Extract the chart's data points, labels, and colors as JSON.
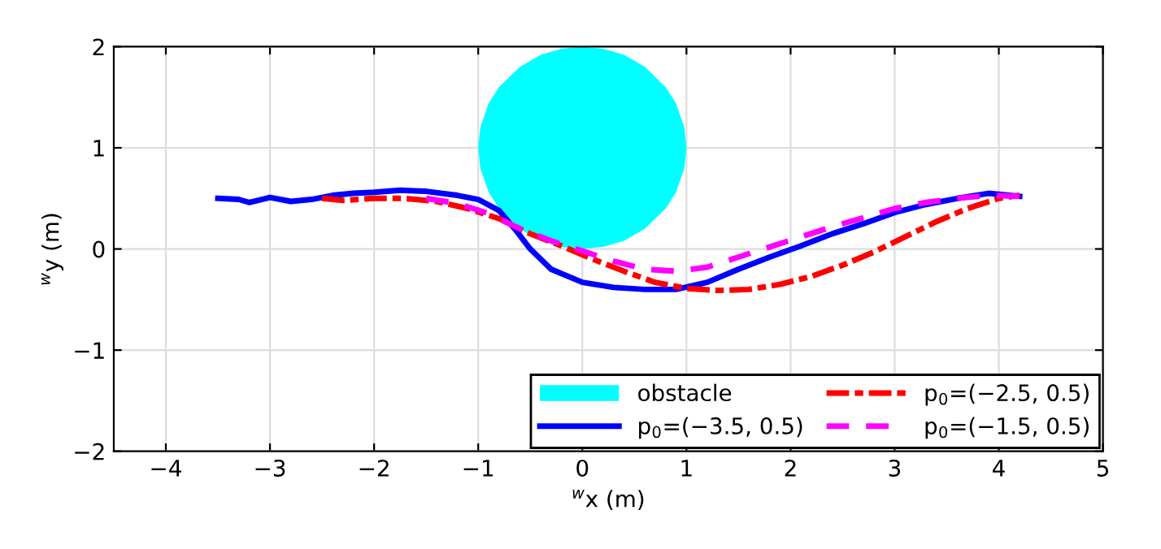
{
  "chart_data": {
    "type": "line",
    "xlabel": "$^{w}$x (m)",
    "ylabel": "$^{w}$y (m)",
    "xlim": [
      -4.5,
      5
    ],
    "ylim": [
      -2,
      2
    ],
    "xticks": [
      -4,
      -3,
      -2,
      -1,
      0,
      1,
      2,
      3,
      4,
      5
    ],
    "yticks": [
      -2,
      -1,
      0,
      1,
      2
    ],
    "grid": true,
    "legend": "bottom right",
    "series": [
      {
        "name": "obstacle",
        "type": "area",
        "color": "#00ffff",
        "x": [
          -1,
          -0.98,
          -0.9,
          -0.8,
          -0.6,
          -0.4,
          -0.2,
          0,
          0.2,
          0.4,
          0.6,
          0.8,
          0.9,
          0.98,
          1,
          0.98,
          0.9,
          0.8,
          0.6,
          0.4,
          0.2,
          0,
          -0.2,
          -0.4,
          -0.6,
          -0.8,
          -0.9,
          -0.98
        ],
        "values": [
          1,
          1.2,
          1.44,
          1.6,
          1.8,
          1.92,
          1.98,
          2,
          1.98,
          1.92,
          1.8,
          1.6,
          1.44,
          1.2,
          1,
          0.8,
          0.56,
          0.4,
          0.2,
          0.08,
          0.02,
          0,
          0.02,
          0.08,
          0.2,
          0.4,
          0.56,
          0.8
        ]
      },
      {
        "name": "p$_{0}$=(−3.5, 0.5)",
        "color": "#0000ff",
        "line_style": "solid",
        "x": [
          -3.5,
          -3.3,
          -3.2,
          -3.0,
          -2.8,
          -2.6,
          -2.4,
          -2.2,
          -2.0,
          -1.75,
          -1.5,
          -1.2,
          -1.0,
          -0.8,
          -0.65,
          -0.5,
          -0.3,
          0,
          0.3,
          0.6,
          0.9,
          1.2,
          1.5,
          1.8,
          2.1,
          2.4,
          2.7,
          3.0,
          3.3,
          3.6,
          3.9,
          4.1,
          4.2
        ],
        "values": [
          0.5,
          0.49,
          0.46,
          0.51,
          0.47,
          0.49,
          0.53,
          0.55,
          0.56,
          0.58,
          0.57,
          0.53,
          0.49,
          0.38,
          0.2,
          0.0,
          -0.2,
          -0.33,
          -0.38,
          -0.4,
          -0.4,
          -0.33,
          -0.2,
          -0.08,
          0.03,
          0.15,
          0.25,
          0.36,
          0.44,
          0.5,
          0.55,
          0.53,
          0.52
        ]
      },
      {
        "name": "p$_{0}$=(−2.5, 0.5)",
        "color": "#ff0000",
        "line_style": "dashdot",
        "x": [
          -2.5,
          -2.3,
          -2.0,
          -1.7,
          -1.4,
          -1.1,
          -0.8,
          -0.5,
          -0.2,
          0.1,
          0.4,
          0.7,
          1.0,
          1.3,
          1.6,
          1.9,
          2.2,
          2.5,
          2.8,
          3.1,
          3.4,
          3.7,
          4.0,
          4.2
        ],
        "values": [
          0.5,
          0.48,
          0.5,
          0.5,
          0.47,
          0.4,
          0.3,
          0.15,
          0.03,
          -0.1,
          -0.22,
          -0.33,
          -0.39,
          -0.41,
          -0.4,
          -0.35,
          -0.27,
          -0.16,
          -0.03,
          0.12,
          0.27,
          0.4,
          0.5,
          0.53
        ]
      },
      {
        "name": "p$_{0}$=(−1.5, 0.5)",
        "color": "#ff00ff",
        "line_style": "dashed",
        "x": [
          -1.5,
          -1.2,
          -0.9,
          -0.6,
          -0.3,
          0,
          0.3,
          0.6,
          0.9,
          1.2,
          1.5,
          1.8,
          2.1,
          2.4,
          2.7,
          3.0,
          3.3,
          3.6,
          3.9,
          4.2
        ],
        "values": [
          0.5,
          0.45,
          0.35,
          0.2,
          0.08,
          -0.02,
          -0.12,
          -0.2,
          -0.22,
          -0.18,
          -0.08,
          0.02,
          0.12,
          0.22,
          0.31,
          0.4,
          0.46,
          0.5,
          0.53,
          0.52
        ]
      }
    ]
  }
}
